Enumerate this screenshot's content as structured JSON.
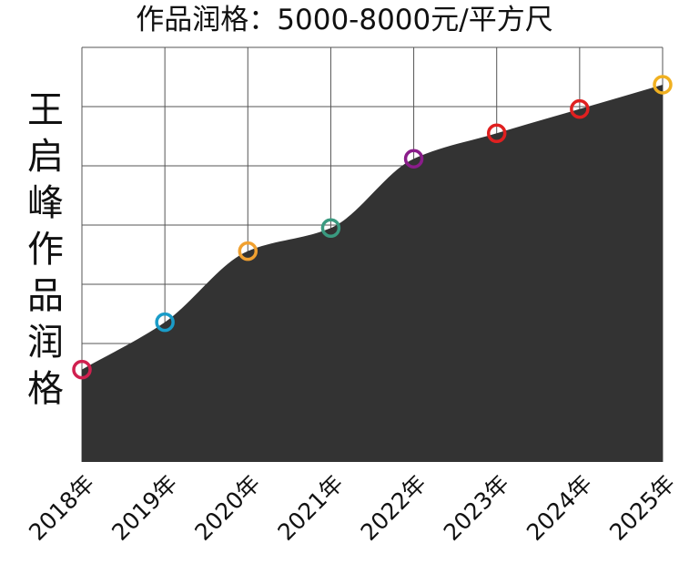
{
  "chart_data": {
    "type": "area",
    "title": "作品润格：5000-8000元/平方尺",
    "ylabel": "王启峰作品润格",
    "xlabel": "",
    "categories": [
      "2018年",
      "2019年",
      "2020年",
      "2021年",
      "2022年",
      "2023年",
      "2024年",
      "2025年"
    ],
    "values": [
      1.56,
      2.36,
      3.56,
      3.95,
      5.12,
      5.55,
      5.96,
      6.37
    ],
    "ylim": [
      0,
      7
    ],
    "grid": true,
    "area_color": "#333333",
    "marker_colors": [
      "#d0204f",
      "#1a9cc8",
      "#f0a030",
      "#3a9a80",
      "#8a1c8a",
      "#e02020",
      "#e02020",
      "#f0b020"
    ]
  }
}
